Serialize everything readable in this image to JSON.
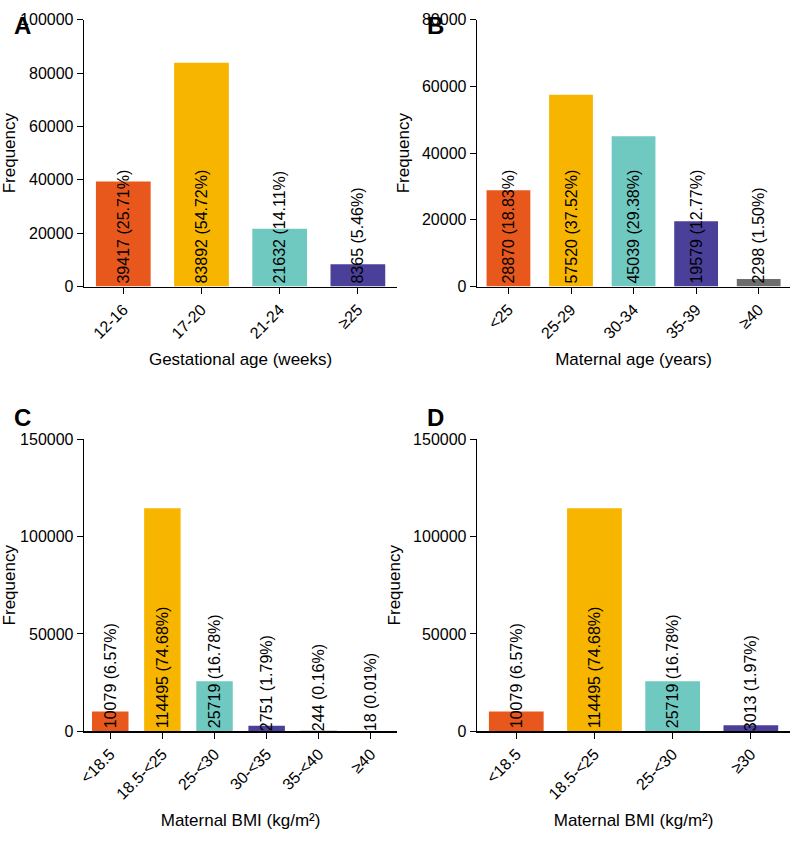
{
  "chart_data": [
    {
      "type": "bar",
      "title": "A",
      "x_label": "Gestational age (weeks)",
      "y_label": "Frequency",
      "categories": [
        "12-16",
        "17-20",
        "21-24",
        "≥25"
      ],
      "values": [
        39417,
        83892,
        21632,
        8365
      ],
      "value_labels": [
        "39417 (25.71%)",
        "83892 (54.72%)",
        "21632 (14.11%)",
        "8365 (5.46%)"
      ],
      "colors": [
        "#e8581c",
        "#f7b500",
        "#6fc9c0",
        "#4a3f99"
      ],
      "ylim": [
        0,
        100000
      ],
      "yticks": [
        0,
        20000,
        40000,
        60000,
        80000,
        100000
      ],
      "grid": false,
      "data_labels": true
    },
    {
      "type": "bar",
      "title": "B",
      "x_label": "Maternal age (years)",
      "y_label": "Frequency",
      "categories": [
        "<25",
        "25-29",
        "30-34",
        "35-39",
        "≥40"
      ],
      "values": [
        28870,
        57520,
        45039,
        19579,
        2298
      ],
      "value_labels": [
        "28870 (18.83%)",
        "57520 (37.52%)",
        "45039 (29.38%)",
        "19579 (12.77%)",
        "2298 (1.50%)"
      ],
      "colors": [
        "#e8581c",
        "#f7b500",
        "#6fc9c0",
        "#4a3f99",
        "#6d6d6d"
      ],
      "ylim": [
        0,
        80000
      ],
      "yticks": [
        0,
        20000,
        40000,
        60000,
        80000
      ],
      "grid": false,
      "data_labels": true
    },
    {
      "type": "bar",
      "title": "C",
      "x_label": "Maternal BMI (kg/m²)",
      "y_label": "Frequency",
      "categories": [
        "<18.5",
        "18.5-<25",
        "25-<30",
        "30-<35",
        "35-<40",
        "≥40"
      ],
      "values": [
        10079,
        114495,
        25719,
        2751,
        244,
        18
      ],
      "value_labels": [
        "10079 (6.57%)",
        "114495 (74.68%)",
        "25719 (16.78%)",
        "2751 (1.79%)",
        "244 (0.16%)",
        "18 (0.01%)"
      ],
      "colors": [
        "#e8581c",
        "#f7b500",
        "#6fc9c0",
        "#4a3f99",
        "#6d6d6d",
        "#303030"
      ],
      "ylim": [
        0,
        150000
      ],
      "yticks": [
        0,
        50000,
        100000,
        150000
      ],
      "grid": false,
      "data_labels": true
    },
    {
      "type": "bar",
      "title": "D",
      "x_label": "Maternal BMI (kg/m²)",
      "y_label": "Frequency",
      "categories": [
        "<18.5",
        "18.5-<25",
        "25-<30",
        "≥30"
      ],
      "values": [
        10079,
        114495,
        25719,
        3013
      ],
      "value_labels": [
        "10079 (6.57%)",
        "114495 (74.68%)",
        "25719 (16.78%)",
        "3013 (1.97%)"
      ],
      "colors": [
        "#e8581c",
        "#f7b500",
        "#6fc9c0",
        "#4a3f99"
      ],
      "ylim": [
        0,
        150000
      ],
      "yticks": [
        0,
        50000,
        100000,
        150000
      ],
      "grid": false,
      "data_labels": true
    }
  ]
}
